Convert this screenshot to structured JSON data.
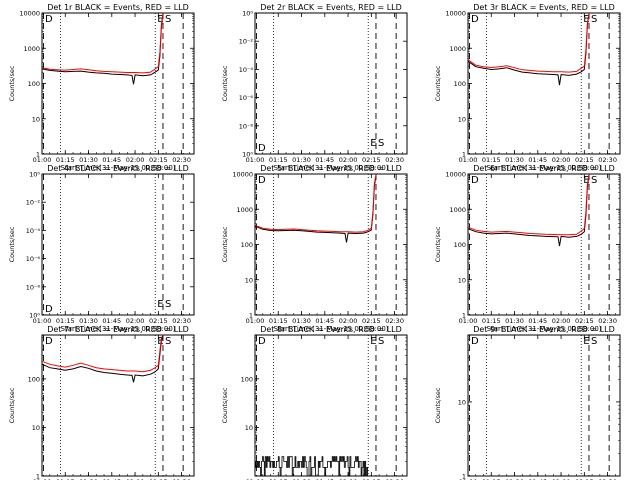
{
  "chart_data": {
    "type": "line",
    "layout": "3x3 grid",
    "x_ticks": [
      "01:00",
      "01:15",
      "01:30",
      "01:45",
      "02:00",
      "02:15",
      "02:30"
    ],
    "x_range": [
      "01:00",
      "02:38"
    ],
    "xlabel": "Start Time (31-May-15 00:58:00)",
    "ylabel": "Counts/sec",
    "y_scale": "log",
    "series_colors": {
      "events": "#000000",
      "lld": "#ff0000"
    },
    "dotted_lines_at": [
      "01:12",
      "02:13"
    ],
    "dashed_lines_at": [
      "01:01",
      "02:18",
      "02:31"
    ],
    "marker_labels": {
      "left": "D",
      "E": "E",
      "S": "S"
    },
    "panels": [
      {
        "title": "Det 1r BLACK = Events, RED = LLD",
        "y_ticks": [
          "1",
          "10",
          "100",
          "1000",
          "10000"
        ],
        "ylim": [
          1,
          10000
        ],
        "es_visible": true,
        "events": {
          "x": [
            "01:00",
            "01:05",
            "01:10",
            "01:15",
            "01:20",
            "01:25",
            "01:30",
            "01:35",
            "01:40",
            "01:45",
            "01:50",
            "01:55",
            "01:58",
            "01:59",
            "02:00",
            "02:05",
            "02:10",
            "02:13",
            "02:15",
            "02:16",
            "02:17",
            "02:18"
          ],
          "y": [
            260,
            235,
            225,
            215,
            220,
            225,
            210,
            200,
            195,
            185,
            180,
            175,
            170,
            95,
            175,
            165,
            175,
            210,
            240,
            600,
            4000,
            10000
          ]
        },
        "lld": {
          "x": [
            "01:00",
            "01:05",
            "01:10",
            "01:15",
            "01:20",
            "01:25",
            "01:30",
            "01:35",
            "01:40",
            "01:45",
            "01:50",
            "01:55",
            "02:00",
            "02:05",
            "02:10",
            "02:13",
            "02:15",
            "02:16",
            "02:17",
            "02:18"
          ],
          "y": [
            280,
            255,
            245,
            240,
            250,
            260,
            245,
            230,
            220,
            215,
            210,
            205,
            205,
            200,
            210,
            260,
            300,
            800,
            5000,
            10000
          ]
        }
      },
      {
        "title": "Det 2r BLACK = Events, RED = LLD",
        "y_ticks": [
          "10⁰",
          "10⁻⁸",
          "10⁻⁶",
          "10⁻⁴",
          "10⁻²",
          "10⁰"
        ],
        "ylim": [
          0,
          5
        ],
        "es_visible": true
      },
      {
        "title": "Det 3r BLACK = Events, RED = LLD",
        "y_ticks": [
          "1",
          "10",
          "100",
          "1000",
          "10000"
        ],
        "ylim": [
          1,
          10000
        ],
        "es_visible": true,
        "events": {
          "x": [
            "01:00",
            "01:05",
            "01:10",
            "01:15",
            "01:20",
            "01:25",
            "01:30",
            "01:35",
            "01:40",
            "01:45",
            "01:50",
            "01:55",
            "01:58",
            "01:59",
            "02:00",
            "02:05",
            "02:10",
            "02:13",
            "02:15",
            "02:16",
            "02:17",
            "02:18"
          ],
          "y": [
            430,
            300,
            270,
            250,
            260,
            280,
            240,
            210,
            200,
            190,
            185,
            180,
            175,
            90,
            180,
            170,
            185,
            215,
            250,
            700,
            4500,
            10000
          ]
        },
        "lld": {
          "x": [
            "01:00",
            "01:05",
            "01:10",
            "01:15",
            "01:20",
            "01:25",
            "01:30",
            "01:35",
            "01:40",
            "01:45",
            "01:50",
            "01:55",
            "02:00",
            "02:05",
            "02:10",
            "02:13",
            "02:15",
            "02:16",
            "02:17",
            "02:18"
          ],
          "y": [
            470,
            330,
            300,
            285,
            300,
            320,
            280,
            245,
            235,
            225,
            220,
            215,
            215,
            210,
            220,
            270,
            310,
            900,
            5200,
            10000
          ]
        }
      },
      {
        "title": "Det 4r BLACK = Events, RED = LLD",
        "y_ticks": [
          "10⁰",
          "10⁻⁸",
          "10⁻⁶",
          "10⁻⁴",
          "10⁻²",
          "10⁰"
        ],
        "ylim": [
          0,
          5
        ],
        "es_visible": true
      },
      {
        "title": "Det 5r BLACK = Events, RED = LLD",
        "y_ticks": [
          "1",
          "10",
          "100",
          "1000",
          "10000"
        ],
        "ylim": [
          1,
          10000
        ],
        "es_visible": false,
        "events": {
          "x": [
            "01:00",
            "01:05",
            "01:10",
            "01:15",
            "01:20",
            "01:25",
            "01:30",
            "01:35",
            "01:40",
            "01:45",
            "01:50",
            "01:55",
            "01:58",
            "01:59",
            "02:00",
            "02:05",
            "02:10",
            "02:13",
            "02:15",
            "02:16",
            "02:17",
            "02:18"
          ],
          "y": [
            330,
            270,
            250,
            245,
            250,
            255,
            245,
            235,
            225,
            220,
            215,
            210,
            205,
            115,
            210,
            205,
            210,
            230,
            260,
            700,
            4500,
            9000
          ]
        },
        "lld": {
          "x": [
            "01:00",
            "01:05",
            "01:10",
            "01:15",
            "01:20",
            "01:25",
            "01:30",
            "01:35",
            "01:40",
            "01:45",
            "01:50",
            "01:55",
            "02:00",
            "02:05",
            "02:10",
            "02:13",
            "02:15",
            "02:16",
            "02:17",
            "02:18"
          ],
          "y": [
            350,
            290,
            270,
            265,
            270,
            275,
            265,
            255,
            245,
            240,
            235,
            230,
            230,
            225,
            230,
            255,
            290,
            850,
            5500,
            9500
          ]
        }
      },
      {
        "title": "Det 6r BLACK = Events, RED = LLD",
        "y_ticks": [
          "1",
          "10",
          "100",
          "1000",
          "10000"
        ],
        "ylim": [
          1,
          10000
        ],
        "es_visible": true,
        "events": {
          "x": [
            "01:00",
            "01:05",
            "01:10",
            "01:15",
            "01:20",
            "01:25",
            "01:30",
            "01:35",
            "01:40",
            "01:45",
            "01:50",
            "01:55",
            "01:58",
            "01:59",
            "02:00",
            "02:05",
            "02:10",
            "02:13",
            "02:15",
            "02:16",
            "02:17",
            "02:18"
          ],
          "y": [
            280,
            230,
            210,
            200,
            205,
            210,
            200,
            190,
            180,
            175,
            170,
            168,
            165,
            90,
            170,
            160,
            170,
            195,
            230,
            650,
            4200,
            9500
          ]
        },
        "lld": {
          "x": [
            "01:00",
            "01:05",
            "01:10",
            "01:15",
            "01:20",
            "01:25",
            "01:30",
            "01:35",
            "01:40",
            "01:45",
            "01:50",
            "01:55",
            "02:00",
            "02:05",
            "02:10",
            "02:13",
            "02:15",
            "02:16",
            "02:17",
            "02:18"
          ],
          "y": [
            310,
            255,
            235,
            225,
            230,
            235,
            225,
            215,
            205,
            200,
            195,
            192,
            190,
            188,
            195,
            240,
            285,
            850,
            5200,
            10000
          ]
        }
      },
      {
        "title": "Det 7r BLACK = Events, RED = LLD",
        "y_ticks": [
          "1",
          "10",
          "100"
        ],
        "ylim": [
          1,
          800
        ],
        "es_visible": true,
        "events": {
          "x": [
            "01:00",
            "01:05",
            "01:10",
            "01:15",
            "01:20",
            "01:25",
            "01:30",
            "01:35",
            "01:40",
            "01:45",
            "01:50",
            "01:55",
            "01:58",
            "01:59",
            "02:00",
            "02:05",
            "02:10",
            "02:13",
            "02:15",
            "02:16",
            "02:17",
            "02:18"
          ],
          "y": [
            200,
            170,
            160,
            150,
            160,
            180,
            165,
            145,
            135,
            130,
            125,
            120,
            118,
            85,
            120,
            115,
            125,
            140,
            160,
            320,
            600,
            800
          ]
        },
        "lld": {
          "x": [
            "01:00",
            "01:05",
            "01:10",
            "01:15",
            "01:20",
            "01:25",
            "01:30",
            "01:35",
            "01:40",
            "01:45",
            "01:50",
            "01:55",
            "02:00",
            "02:05",
            "02:10",
            "02:13",
            "02:15",
            "02:16",
            "02:17",
            "02:18"
          ],
          "y": [
            230,
            200,
            185,
            175,
            190,
            210,
            190,
            170,
            160,
            155,
            150,
            145,
            145,
            140,
            150,
            170,
            190,
            380,
            700,
            800
          ]
        }
      },
      {
        "title": "Det 8r BLACK = Events, RED = LLD",
        "y_ticks": [
          "10",
          "100"
        ],
        "ylim": [
          1,
          800
        ],
        "es_visible": true,
        "events_noise": {
          "x_range": [
            "01:00",
            "02:13"
          ],
          "levels": [
            1.5,
            2,
            2.5
          ]
        }
      },
      {
        "title": "Det 9r BLACK = Events, RED = LLD",
        "y_ticks": [
          "1",
          "10"
        ],
        "ylim": [
          1,
          80
        ],
        "es_visible": true
      }
    ]
  }
}
